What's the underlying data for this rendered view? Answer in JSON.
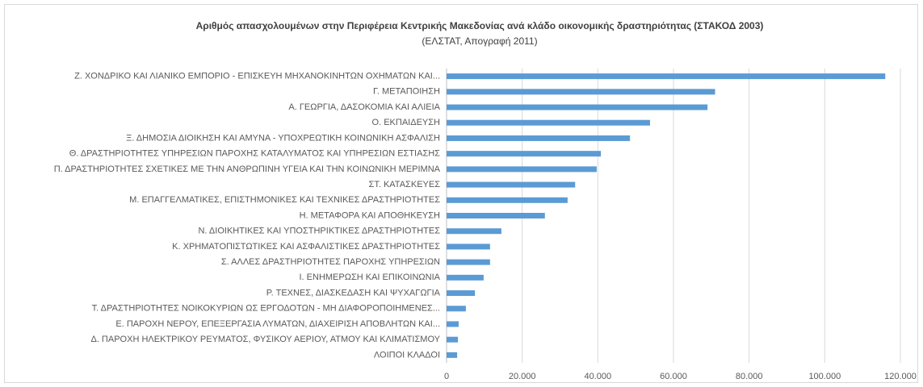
{
  "chart_data": {
    "type": "bar",
    "orientation": "horizontal",
    "title": "Αριθμός απασχολουμένων στην Περιφέρεια  Κεντρικής Μακεδονίας ανά κλάδο οικονομικής δραστηριότητας  (ΣΤΑΚΟΔ 2003)",
    "subtitle": "(ΕΛΣΤΑΤ, Απογραφή 2011)",
    "categories": [
      "Ζ. ΧΟΝΔΡΙΚΟ ΚΑΙ ΛΙΑΝΙΚΟ ΕΜΠΟΡΙΟ - ΕΠΙΣΚΕΥΗ ΜΗΧΑΝΟΚΙΝΗΤΩΝ ΟΧΗΜΑΤΩΝ ΚΑΙ...",
      "Γ. ΜΕΤΑΠΟΙΗΣΗ",
      "Α. ΓΕΩΡΓΙΑ, ΔΑΣΟΚΟΜΙΑ ΚΑΙ ΑΛΙΕΙΑ",
      "Ο. ΕΚΠΑΙΔΕΥΣΗ",
      "Ξ. ΔΗΜΟΣΙΑ ΔΙΟΙΚΗΣΗ ΚΑΙ ΑΜΥΝΑ - ΥΠΟΧΡΕΩΤΙΚΗ ΚΟΙΝΩΝΙΚΗ ΑΣΦΑΛΙΣΗ",
      "Θ. ΔΡΑΣΤΗΡΙΟΤΗΤΕΣ ΥΠΗΡΕΣΙΩΝ ΠΑΡΟΧΗΣ ΚΑΤΑΛΥΜΑΤΟΣ ΚΑΙ ΥΠΗΡΕΣΙΩΝ ΕΣΤΙΑΣΗΣ",
      "Π. ΔΡΑΣΤΗΡΙΟΤΗΤΕΣ ΣΧΕΤΙΚΕΣ ΜΕ ΤΗΝ ΑΝΘΡΩΠΙΝΗ ΥΓΕΙΑ ΚΑΙ ΤΗΝ ΚΟΙΝΩΝΙΚΗ ΜΕΡΙΜΝΑ",
      "ΣΤ. ΚΑΤΑΣΚΕΥΕΣ",
      "Μ. ΕΠΑΓΓΕΛΜΑΤΙΚΕΣ, ΕΠΙΣΤΗΜΟΝΙΚΕΣ ΚΑΙ ΤΕΧΝΙΚΕΣ ΔΡΑΣΤΗΡΙΟΤΗΤΕΣ",
      "Η. ΜΕΤΑΦΟΡΑ ΚΑΙ ΑΠΟΘΗΚΕΥΣΗ",
      "Ν. ΔΙΟΙΚΗΤΙΚΕΣ ΚΑΙ ΥΠΟΣΤΗΡΙΚΤΙΚΕΣ ΔΡΑΣΤΗΡΙΟΤΗΤΕΣ",
      "Κ. ΧΡΗΜΑΤΟΠΙΣΤΩΤΙΚΕΣ ΚΑΙ ΑΣΦΑΛΙΣΤΙΚΕΣ ΔΡΑΣΤΗΡΙΟΤΗΤΕΣ",
      "Σ. ΑΛΛΕΣ ΔΡΑΣΤΗΡΙΟΤΗΤΕΣ ΠΑΡΟΧΗΣ ΥΠΗΡΕΣΙΩΝ",
      "Ι. ΕΝΗΜΕΡΩΣΗ ΚΑΙ ΕΠΙΚΟΙΝΩΝΙΑ",
      "Ρ. ΤΕΧΝΕΣ, ΔΙΑΣΚΕΔΑΣΗ ΚΑΙ ΨΥΧΑΓΩΓΙΑ",
      "Τ. ΔΡΑΣΤΗΡΙΟΤΗΤΕΣ ΝΟΙΚΟΚΥΡΙΩΝ ΩΣ ΕΡΓΟΔΟΤΩΝ - ΜΗ ΔΙΑΦΟΡΟΠΟΙΗΜΕΝΕΣ...",
      "Ε. ΠΑΡΟΧΗ ΝΕΡΟΥ, ΕΠΕΞΕΡΓΑΣΙΑ ΛΥΜΑΤΩΝ, ΔΙΑΧΕΙΡΙΣΗ ΑΠΟΒΛΗΤΩΝ ΚΑΙ...",
      "Δ. ΠΑΡΟΧΗ ΗΛΕΚΤΡΙΚΟΥ ΡΕΥΜΑΤΟΣ, ΦΥΣΙΚΟΥ ΑΕΡΙΟΥ, ΑΤΜΟΥ ΚΑΙ ΚΛΙΜΑΤΙΣΜΟΥ",
      "ΛΟΙΠΟΙ ΚΛΑΔΟΙ"
    ],
    "values": [
      116000,
      71000,
      69000,
      53800,
      48500,
      40800,
      39700,
      34000,
      32000,
      26000,
      14500,
      11500,
      11500,
      9800,
      7500,
      5100,
      3200,
      3000,
      2800
    ],
    "color": "#5b9bd5",
    "xlim": [
      0,
      120000
    ],
    "xticks": [
      0,
      {
        "value": 20000,
        "label": "20.000"
      },
      {
        "value": 40000,
        "label": "40.000"
      },
      {
        "value": 60000,
        "label": "60.000"
      },
      {
        "value": 80000,
        "label": "80.000"
      },
      {
        "value": 100000,
        "label": "100.000"
      },
      {
        "value": 120000,
        "label": "120.000"
      }
    ],
    "grid": true
  }
}
